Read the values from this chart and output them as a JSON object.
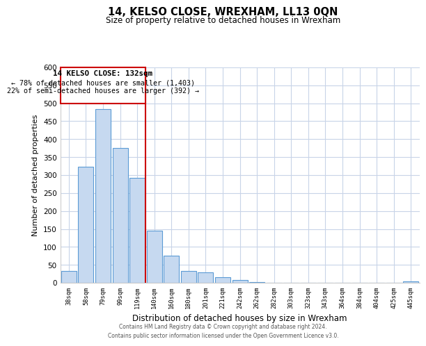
{
  "title": "14, KELSO CLOSE, WREXHAM, LL13 0QN",
  "subtitle": "Size of property relative to detached houses in Wrexham",
  "xlabel": "Distribution of detached houses by size in Wrexham",
  "ylabel": "Number of detached properties",
  "bar_labels": [
    "38sqm",
    "58sqm",
    "79sqm",
    "99sqm",
    "119sqm",
    "140sqm",
    "160sqm",
    "180sqm",
    "201sqm",
    "221sqm",
    "242sqm",
    "262sqm",
    "282sqm",
    "303sqm",
    "323sqm",
    "343sqm",
    "364sqm",
    "384sqm",
    "404sqm",
    "425sqm",
    "445sqm"
  ],
  "bar_values": [
    32,
    323,
    483,
    375,
    292,
    145,
    75,
    32,
    29,
    16,
    7,
    1,
    0,
    0,
    0,
    0,
    0,
    0,
    0,
    0,
    3
  ],
  "bar_color": "#c6d9f0",
  "bar_edge_color": "#5b9bd5",
  "reference_line_color": "#cc0000",
  "annotation_title": "14 KELSO CLOSE: 132sqm",
  "annotation_line1": "← 78% of detached houses are smaller (1,403)",
  "annotation_line2": "22% of semi-detached houses are larger (392) →",
  "ylim": [
    0,
    600
  ],
  "yticks": [
    0,
    50,
    100,
    150,
    200,
    250,
    300,
    350,
    400,
    450,
    500,
    550,
    600
  ],
  "footer_line1": "Contains HM Land Registry data © Crown copyright and database right 2024.",
  "footer_line2": "Contains public sector information licensed under the Open Government Licence v3.0.",
  "background_color": "#ffffff",
  "grid_color": "#c8d4e8"
}
